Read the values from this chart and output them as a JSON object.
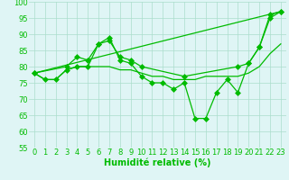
{
  "series": [
    {
      "x": [
        0,
        1,
        2,
        3,
        4,
        5,
        6,
        7,
        8,
        9,
        10,
        11,
        12,
        13,
        14,
        15,
        16,
        17,
        18,
        19,
        20,
        21,
        22,
        23
      ],
      "y": [
        78,
        76,
        76,
        79,
        80,
        80,
        87,
        89,
        82,
        81,
        77,
        75,
        75,
        73,
        75,
        64,
        64,
        72,
        76,
        72,
        81,
        86,
        96,
        97
      ],
      "marker": "D"
    },
    {
      "x": [
        0,
        3,
        4,
        5,
        6,
        7,
        8,
        9,
        10,
        14,
        19,
        20,
        21,
        22,
        23
      ],
      "y": [
        78,
        80,
        83,
        82,
        87,
        88,
        83,
        82,
        80,
        77,
        80,
        81,
        86,
        95,
        97
      ],
      "marker": "D"
    },
    {
      "x": [
        0,
        23
      ],
      "y": [
        78,
        97
      ],
      "marker": ""
    },
    {
      "x": [
        0,
        1,
        2,
        3,
        4,
        5,
        6,
        7,
        8,
        9,
        10,
        11,
        12,
        13,
        14,
        15,
        16,
        17,
        18,
        19,
        20,
        21,
        22,
        23
      ],
      "y": [
        78,
        76,
        76,
        79,
        80,
        80,
        80,
        80,
        79,
        79,
        78,
        77,
        77,
        76,
        76,
        76,
        77,
        77,
        77,
        77,
        78,
        80,
        84,
        87
      ],
      "marker": ""
    }
  ],
  "line_color": "#00bb00",
  "markersize": 3,
  "linewidth": 0.9,
  "xlabel": "Humidité relative (%)",
  "xlabel_color": "#00bb00",
  "xlabel_fontsize": 7,
  "bg_color": "#dff5f5",
  "grid_color": "#aaddcc",
  "tick_color": "#00bb00",
  "tick_fontsize": 6,
  "ylim": [
    55,
    100
  ],
  "yticks": [
    55,
    60,
    65,
    70,
    75,
    80,
    85,
    90,
    95,
    100
  ],
  "xlim": [
    -0.5,
    23.5
  ],
  "xticks": [
    0,
    1,
    2,
    3,
    4,
    5,
    6,
    7,
    8,
    9,
    10,
    11,
    12,
    13,
    14,
    15,
    16,
    17,
    18,
    19,
    20,
    21,
    22,
    23
  ],
  "figwidth": 3.2,
  "figheight": 2.0,
  "dpi": 100
}
